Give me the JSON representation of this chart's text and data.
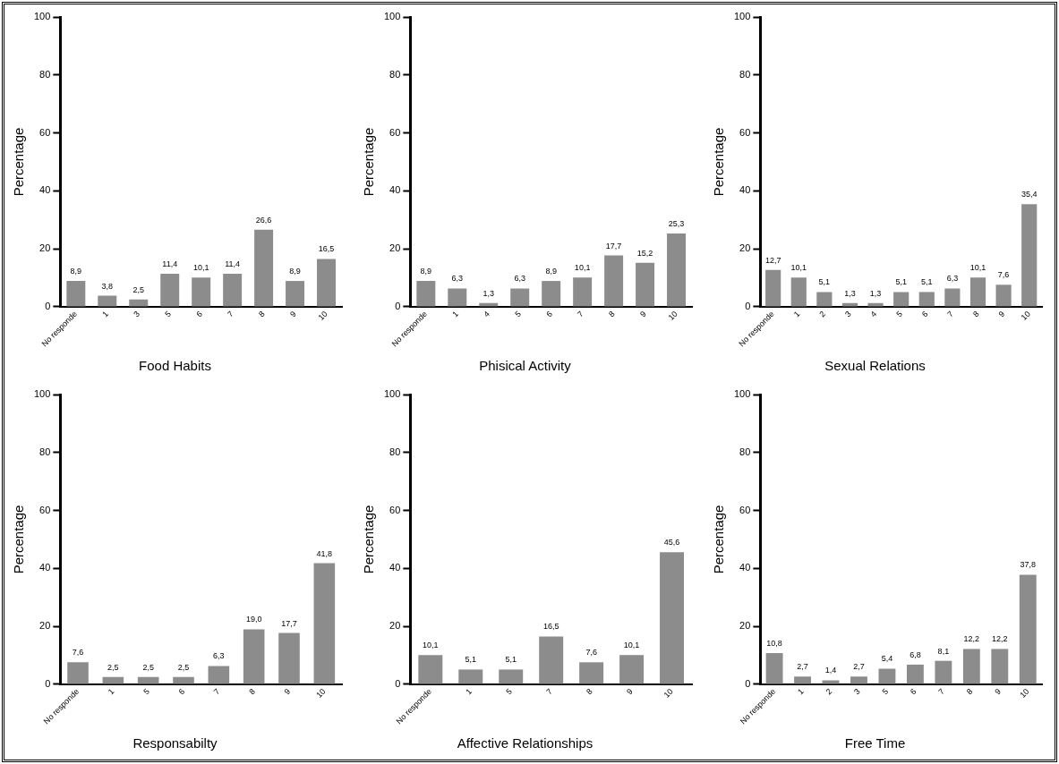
{
  "chart_data": [
    {
      "type": "bar",
      "title": "Food Habits",
      "ylabel": "Percentage",
      "categories": [
        "No responde",
        "1",
        "3",
        "5",
        "6",
        "7",
        "8",
        "9",
        "10"
      ],
      "values": [
        8.9,
        3.8,
        2.5,
        11.4,
        10.1,
        11.4,
        26.6,
        8.9,
        16.5
      ],
      "value_labels": [
        "8,9",
        "3,8",
        "2,5",
        "11,4",
        "10,1",
        "11,4",
        "26,6",
        "8,9",
        "16,5"
      ],
      "color": "#8c8c8c",
      "ylim": [
        0,
        100
      ],
      "yticks": [
        0,
        20,
        40,
        60,
        80,
        100
      ],
      "grid": false,
      "legend": false
    },
    {
      "type": "bar",
      "title": "Phisical Activity",
      "ylabel": "Percentage",
      "categories": [
        "No responde",
        "1",
        "4",
        "5",
        "6",
        "7",
        "8",
        "9",
        "10"
      ],
      "values": [
        8.9,
        6.3,
        1.3,
        6.3,
        8.9,
        10.1,
        17.7,
        15.2,
        25.3
      ],
      "value_labels": [
        "8,9",
        "6,3",
        "1,3",
        "6,3",
        "8,9",
        "10,1",
        "17,7",
        "15,2",
        "25,3"
      ],
      "color": "#8c8c8c",
      "ylim": [
        0,
        100
      ],
      "yticks": [
        0,
        20,
        40,
        60,
        80,
        100
      ],
      "grid": false,
      "legend": false
    },
    {
      "type": "bar",
      "title": "Sexual Relations",
      "ylabel": "Percentage",
      "categories": [
        "No responde",
        "1",
        "2",
        "3",
        "4",
        "5",
        "6",
        "7",
        "8",
        "9",
        "10"
      ],
      "values": [
        12.7,
        10.1,
        5.1,
        1.3,
        1.3,
        5.1,
        5.1,
        6.3,
        10.1,
        7.6,
        35.4
      ],
      "value_labels": [
        "12,7",
        "10,1",
        "5,1",
        "1,3",
        "1,3",
        "5,1",
        "5,1",
        "6,3",
        "10,1",
        "7,6",
        "35,4"
      ],
      "color": "#8c8c8c",
      "ylim": [
        0,
        100
      ],
      "yticks": [
        0,
        20,
        40,
        60,
        80,
        100
      ],
      "grid": false,
      "legend": false
    },
    {
      "type": "bar",
      "title": "Responsabilty",
      "ylabel": "Percentage",
      "categories": [
        "No responde",
        "1",
        "5",
        "6",
        "7",
        "8",
        "9",
        "10"
      ],
      "values": [
        7.6,
        2.5,
        2.5,
        2.5,
        6.3,
        19.0,
        17.7,
        41.8
      ],
      "value_labels": [
        "7,6",
        "2,5",
        "2,5",
        "2,5",
        "6,3",
        "19,0",
        "17,7",
        "41,8"
      ],
      "color": "#8c8c8c",
      "ylim": [
        0,
        100
      ],
      "yticks": [
        0,
        20,
        40,
        60,
        80,
        100
      ],
      "grid": false,
      "legend": false
    },
    {
      "type": "bar",
      "title": "Affective Relationships",
      "ylabel": "Percentage",
      "categories": [
        "No responde",
        "1",
        "5",
        "7",
        "8",
        "9",
        "10"
      ],
      "values": [
        10.1,
        5.1,
        5.1,
        16.5,
        7.6,
        10.1,
        45.6
      ],
      "value_labels": [
        "10,1",
        "5,1",
        "5,1",
        "16,5",
        "7,6",
        "10,1",
        "45,6"
      ],
      "color": "#8c8c8c",
      "ylim": [
        0,
        100
      ],
      "yticks": [
        0,
        20,
        40,
        60,
        80,
        100
      ],
      "grid": false,
      "legend": false
    },
    {
      "type": "bar",
      "title": "Free Time",
      "ylabel": "Percentage",
      "categories": [
        "No responde",
        "1",
        "2",
        "3",
        "5",
        "6",
        "7",
        "8",
        "9",
        "10"
      ],
      "values": [
        10.8,
        2.7,
        1.4,
        2.7,
        5.4,
        6.8,
        8.1,
        12.2,
        12.2,
        37.8
      ],
      "value_labels": [
        "10,8",
        "2,7",
        "1,4",
        "2,7",
        "5,4",
        "6,8",
        "8,1",
        "12,2",
        "12,2",
        "37,8"
      ],
      "color": "#8c8c8c",
      "ylim": [
        0,
        100
      ],
      "yticks": [
        0,
        20,
        40,
        60,
        80,
        100
      ],
      "grid": false,
      "legend": false
    }
  ]
}
